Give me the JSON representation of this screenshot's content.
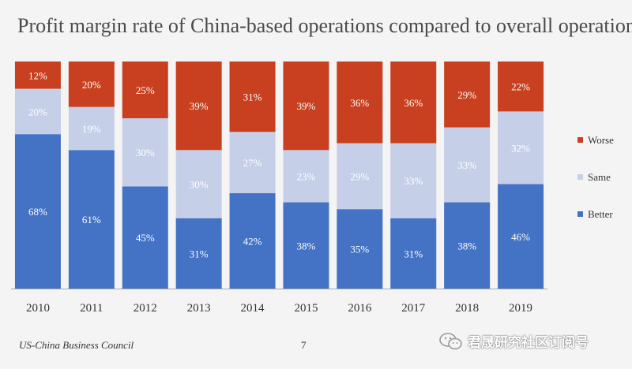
{
  "chart_data": {
    "type": "bar",
    "stacked": true,
    "title": "Profit margin rate of China-based operations compared to overall operations",
    "categories": [
      "2010",
      "2011",
      "2012",
      "2013",
      "2014",
      "2015",
      "2016",
      "2017",
      "2018",
      "2019"
    ],
    "series": [
      {
        "name": "Better",
        "color": "#4472c4",
        "values": [
          68,
          61,
          45,
          31,
          42,
          38,
          35,
          31,
          38,
          46
        ]
      },
      {
        "name": "Same",
        "color": "#c5cfe8",
        "values": [
          20,
          19,
          30,
          30,
          27,
          23,
          29,
          33,
          33,
          32
        ]
      },
      {
        "name": "Worse",
        "color": "#c8401f",
        "values": [
          12,
          20,
          25,
          39,
          31,
          39,
          36,
          36,
          29,
          22
        ]
      }
    ],
    "legend_order": [
      "Worse",
      "Same",
      "Better"
    ],
    "legend_position": "right",
    "ylim": [
      0,
      100
    ],
    "value_suffix": "%"
  },
  "footer": {
    "source": "US-China Business Council",
    "page_number": "7"
  },
  "watermark": {
    "text": "君晟研究社区订阅号",
    "icon": "wechat-icon"
  }
}
